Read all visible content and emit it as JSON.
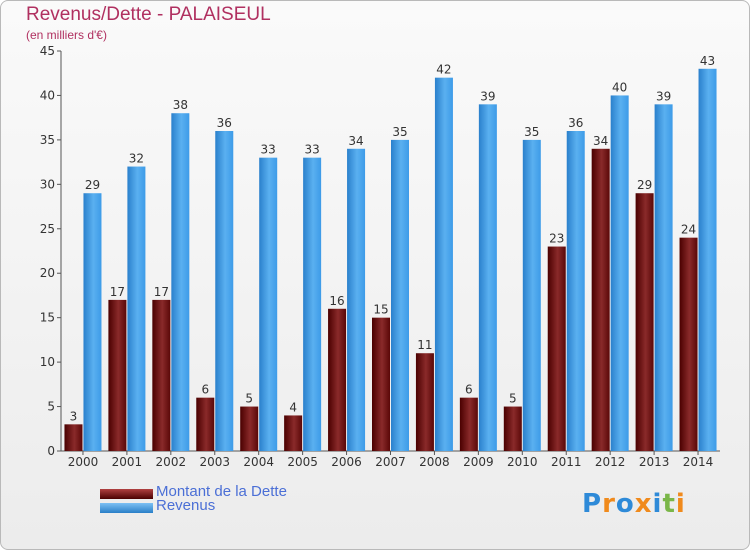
{
  "chart_data": {
    "type": "bar",
    "title": "Revenus/Dette - PALAISEUL",
    "subtitle": "(en milliers d'€)",
    "categories": [
      "2000",
      "2001",
      "2002",
      "2003",
      "2004",
      "2005",
      "2006",
      "2007",
      "2008",
      "2009",
      "2010",
      "2011",
      "2012",
      "2013",
      "2014"
    ],
    "series": [
      {
        "name": "Montant de la Dette",
        "values": [
          3,
          17,
          17,
          6,
          5,
          4,
          16,
          15,
          11,
          6,
          5,
          23,
          34,
          29,
          24
        ],
        "color": "#7a1a1a"
      },
      {
        "name": "Revenus",
        "values": [
          29,
          32,
          38,
          36,
          33,
          33,
          34,
          35,
          42,
          39,
          35,
          36,
          40,
          39,
          43
        ],
        "color": "#3d9be8"
      }
    ],
    "ylim": [
      0,
      45
    ],
    "yticks": [
      0,
      5,
      10,
      15,
      20,
      25,
      30,
      35,
      40,
      45
    ],
    "grid": false,
    "legend_position": "bottom-left"
  },
  "logo": {
    "text": "Proxiti",
    "letter_colors": [
      "#2e8ad8",
      "#f08a1c",
      "#2e8ad8",
      "#f08a1c",
      "#2e8ad8",
      "#7ab648",
      "#f08a1c"
    ]
  }
}
